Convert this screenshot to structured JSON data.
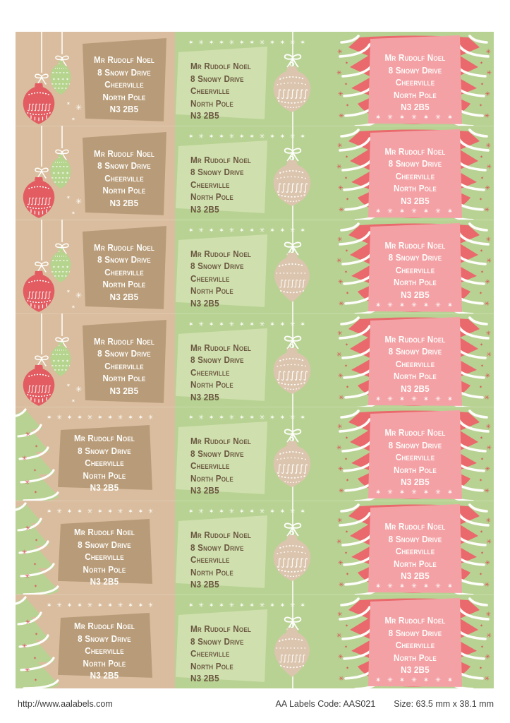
{
  "address": {
    "lines": [
      "Mr Rudolf Noel",
      "8 Snowy Drive",
      "Cheerville",
      "North Pole",
      "N3 2B5"
    ]
  },
  "decor": {
    "asterisk_row": "✶ ✳ ✶ ✶ ✳ ✶ ✶ ✳ ✶ ✶ ✳ ✶",
    "asterisk_row_short": "✶ ✳ ✶ ✳ ✶ ✳ ✶",
    "star_big": "✳",
    "star_small": "✶",
    "squiggle": "∫∫∫∫∫∫∫",
    "mini_stars": "✶ ✶ ✶ ✶"
  },
  "sheet": {
    "rows": 7,
    "columns": [
      {
        "name": "left",
        "bg": "tan_bg",
        "cells": [
          "tan-ornaments",
          "tan-ornaments",
          "tan-ornaments",
          "tan-ornaments",
          "tan-tree",
          "tan-tree",
          "tan-tree"
        ]
      },
      {
        "name": "middle",
        "bg": "green_bg",
        "cells": [
          "green-ornament-a",
          "green-ornament-a",
          "green-ornament-b",
          "green-ornament-a",
          "green-ornament-a",
          "green-ornament-a",
          "green-ornament-b"
        ]
      },
      {
        "name": "right",
        "bg": "green_bg",
        "cells": [
          "red-trees",
          "red-trees",
          "red-trees",
          "red-trees",
          "red-trees",
          "red-trees",
          "red-trees"
        ]
      }
    ]
  },
  "footer": {
    "url": "http://www.aalabels.com",
    "code": "AA Labels Code: AAS021",
    "size": "Size: 63.5 mm x  38.1 mm"
  },
  "colors": {
    "page_bg": "#ffffff",
    "tan_bg": "#d9bd9e",
    "tan_quad": "#b89b78",
    "green_bg": "#b8d293",
    "green_quad": "#cfe0ae",
    "text_brown": "#6b5741",
    "red_shape": "#e9696c",
    "pink_quad": "#f4a1a6",
    "red_accent": "#d94f55",
    "ornament_red": "#e25c62",
    "ornament_green": "#b5d48e",
    "ornament_tan": "#dcc5ae",
    "footer_text": "#3d3d3d"
  }
}
